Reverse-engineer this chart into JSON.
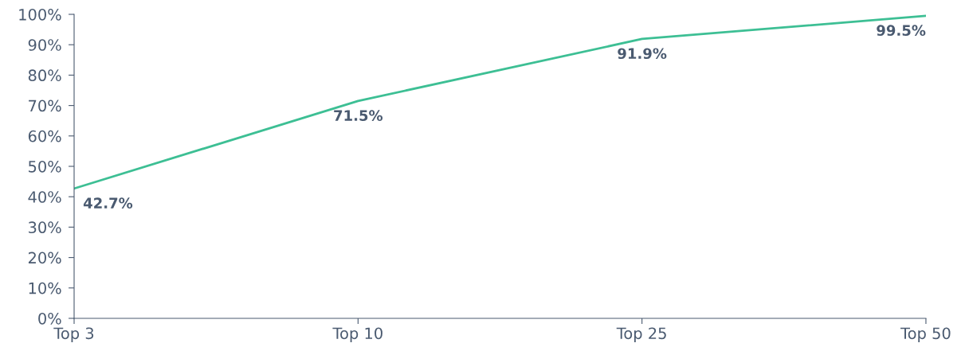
{
  "chart_data": {
    "type": "line",
    "categories": [
      "Top 3",
      "Top 10",
      "Top 25",
      "Top 50"
    ],
    "series": [
      {
        "color": "#3dbf94",
        "values": [
          42.7,
          71.5,
          91.9,
          99.5
        ],
        "value_labels": [
          "42.7%",
          "71.5%",
          "91.9%",
          "99.5%"
        ]
      }
    ],
    "ylim": [
      0,
      100
    ],
    "yticks": [
      {
        "value": 0,
        "label": "0%"
      },
      {
        "value": 10,
        "label": "10%"
      },
      {
        "value": 20,
        "label": "20%"
      },
      {
        "value": 30,
        "label": "30%"
      },
      {
        "value": 40,
        "label": "40%"
      },
      {
        "value": 50,
        "label": "50%"
      },
      {
        "value": 60,
        "label": "60%"
      },
      {
        "value": 70,
        "label": "70%"
      },
      {
        "value": 80,
        "label": "80%"
      },
      {
        "value": 90,
        "label": "90%"
      },
      {
        "value": 100,
        "label": "100%"
      }
    ],
    "grid": false,
    "marker": "none",
    "line_style": "solid"
  }
}
